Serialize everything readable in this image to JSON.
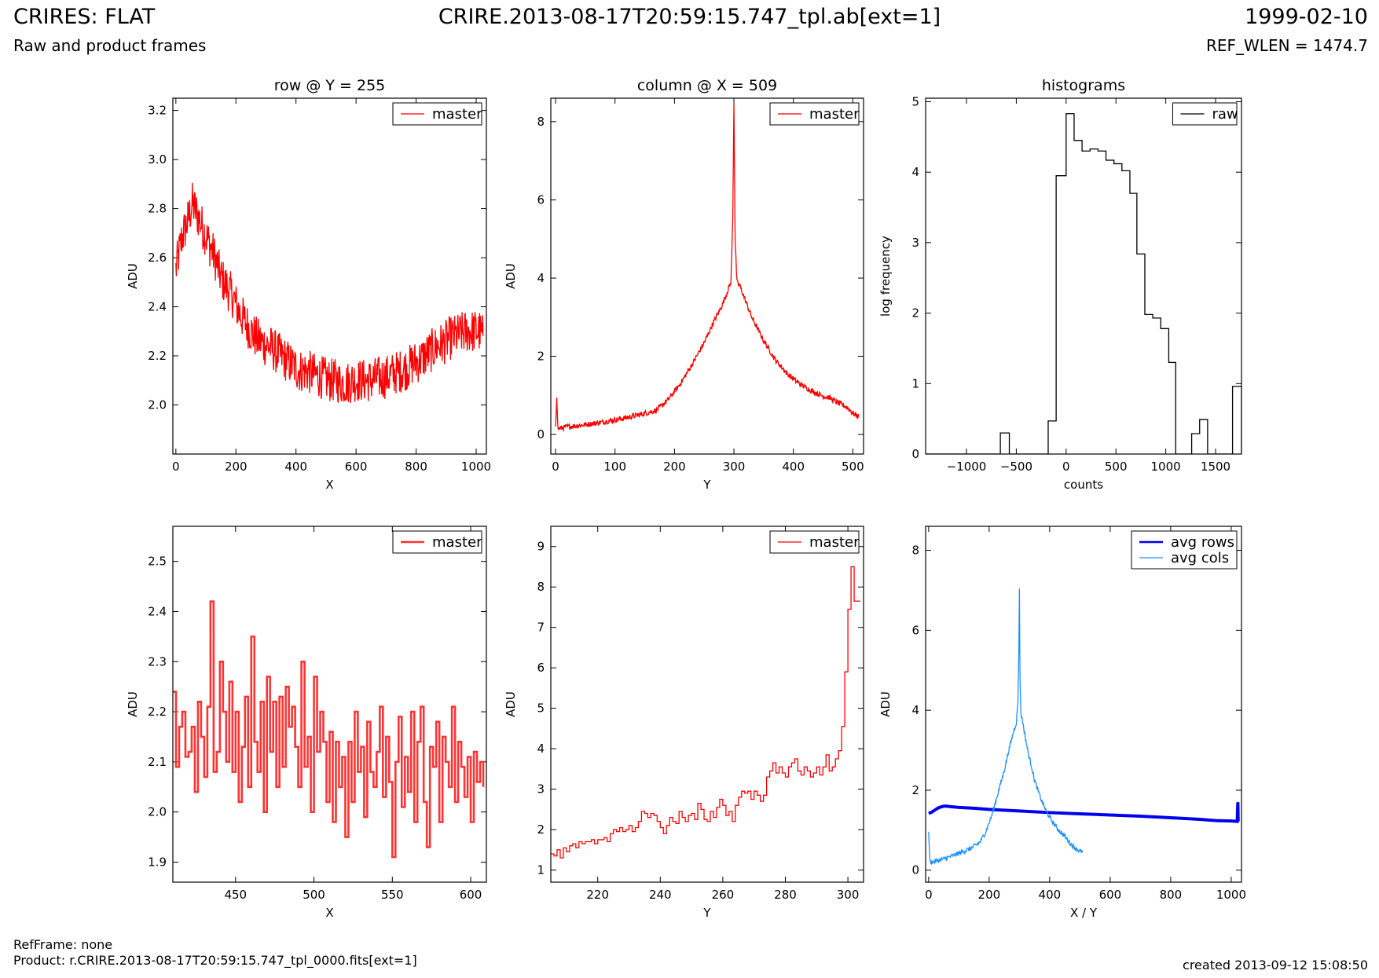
{
  "header": {
    "title": "CRIRES: FLAT",
    "subtitle": "Raw and product frames",
    "file": "CRIRE.2013-08-17T20:59:15.747_tpl.ab[ext=1]",
    "date": "1999-02-10",
    "ref_wlen": "REF_WLEN = 1474.7"
  },
  "footer": {
    "ref_frame": "RefFrame: none",
    "product": "Product: r.CRIRE.2013-08-17T20:59:15.747_tpl_0000.fits[ext=1]",
    "created": "created 2013-09-12 15:08:50"
  },
  "colors": {
    "master": "#ff0000",
    "master_zoom": "#ff3333",
    "raw": "#000000",
    "avg_rows": "#0000ee",
    "avg_cols": "#1e90ff"
  },
  "chart_data": [
    {
      "id": "row",
      "type": "line",
      "title": "row @ Y = 255",
      "xlabel": "X",
      "ylabel": "ADU",
      "xlim": [
        -10,
        1034
      ],
      "ylim": [
        1.8,
        3.25
      ],
      "xticks": [
        0,
        200,
        400,
        600,
        800,
        1000
      ],
      "yticks": [
        2.0,
        2.2,
        2.4,
        2.6,
        2.8,
        3.0,
        3.2
      ],
      "legend": "top-right",
      "series": [
        {
          "name": "master",
          "color": "#ff0000",
          "step": false,
          "x": [
            0,
            20,
            40,
            55,
            70,
            90,
            110,
            130,
            150,
            170,
            190,
            210,
            230,
            250,
            270,
            290,
            310,
            330,
            350,
            370,
            390,
            410,
            430,
            450,
            470,
            490,
            510,
            530,
            550,
            570,
            590,
            610,
            630,
            650,
            670,
            690,
            710,
            730,
            750,
            770,
            790,
            810,
            830,
            850,
            870,
            890,
            910,
            930,
            950,
            970,
            990,
            1010,
            1023
          ],
          "y": [
            2.55,
            2.68,
            2.75,
            2.82,
            2.78,
            2.72,
            2.66,
            2.6,
            2.52,
            2.48,
            2.44,
            2.38,
            2.34,
            2.3,
            2.27,
            2.25,
            2.24,
            2.22,
            2.2,
            2.18,
            2.16,
            2.14,
            2.14,
            2.13,
            2.12,
            2.11,
            2.1,
            2.1,
            2.09,
            2.09,
            2.1,
            2.1,
            2.1,
            2.1,
            2.11,
            2.11,
            2.12,
            2.13,
            2.14,
            2.15,
            2.17,
            2.18,
            2.2,
            2.22,
            2.24,
            2.25,
            2.27,
            2.28,
            2.29,
            2.3,
            2.3,
            2.3,
            2.28
          ],
          "noise": 0.09
        }
      ]
    },
    {
      "id": "column",
      "type": "line",
      "title": "column @ X = 509",
      "xlabel": "Y",
      "ylabel": "ADU",
      "xlim": [
        -8,
        518
      ],
      "ylim": [
        -0.5,
        8.6
      ],
      "xticks": [
        0,
        100,
        200,
        300,
        400,
        500
      ],
      "yticks": [
        0,
        2,
        4,
        6,
        8
      ],
      "legend": "top-right",
      "series": [
        {
          "name": "master",
          "color": "#ff0000",
          "step": false,
          "x": [
            0,
            2,
            4,
            6,
            20,
            50,
            80,
            110,
            140,
            170,
            190,
            210,
            230,
            250,
            265,
            280,
            290,
            295,
            298,
            300,
            302,
            305,
            310,
            320,
            330,
            340,
            350,
            370,
            390,
            410,
            430,
            450,
            460,
            470,
            490,
            500,
            510
          ],
          "y": [
            0.15,
            1.0,
            0.15,
            0.15,
            0.2,
            0.25,
            0.32,
            0.4,
            0.5,
            0.62,
            0.9,
            1.3,
            1.8,
            2.35,
            2.85,
            3.3,
            3.7,
            3.9,
            5.5,
            8.5,
            5.0,
            3.9,
            3.8,
            3.4,
            3.0,
            2.7,
            2.4,
            1.9,
            1.55,
            1.3,
            1.12,
            0.98,
            0.95,
            0.85,
            0.7,
            0.55,
            0.45
          ],
          "noise": 0.07
        }
      ]
    },
    {
      "id": "histogram",
      "type": "bar",
      "title": "histograms",
      "xlabel": "counts",
      "ylabel": "log frequency",
      "xlim": [
        -1410,
        1760
      ],
      "ylim": [
        0,
        5.05
      ],
      "xticks": [
        -1000,
        -500,
        0,
        500,
        1000,
        1500
      ],
      "yticks": [
        0,
        1,
        2,
        3,
        4,
        5
      ],
      "legend": "top-right",
      "series": [
        {
          "name": "raw",
          "color": "#000000",
          "step": true,
          "x": [
            -1410,
            -660,
            -660,
            -570,
            -570,
            -180,
            -180,
            -100,
            -100,
            0,
            0,
            80,
            80,
            160,
            160,
            240,
            240,
            320,
            320,
            400,
            400,
            480,
            480,
            560,
            560,
            640,
            640,
            710,
            710,
            790,
            790,
            870,
            870,
            950,
            950,
            1030,
            1030,
            1100,
            1100,
            1260,
            1260,
            1340,
            1340,
            1420,
            1420,
            1670,
            1670,
            1760,
            1760
          ],
          "y": [
            0,
            0,
            0.3,
            0.3,
            0,
            0,
            0.47,
            0.47,
            3.95,
            3.95,
            4.83,
            4.83,
            4.45,
            4.45,
            4.3,
            4.3,
            4.33,
            4.33,
            4.3,
            4.3,
            4.17,
            4.17,
            4.12,
            4.12,
            4.02,
            4.02,
            3.7,
            3.7,
            2.84,
            2.84,
            1.98,
            1.98,
            1.93,
            1.93,
            1.78,
            1.78,
            1.3,
            1.3,
            0,
            0,
            0.29,
            0.29,
            0.49,
            0.49,
            0,
            0,
            0.96,
            0.96,
            0
          ]
        }
      ]
    },
    {
      "id": "row-zoom",
      "type": "line",
      "title": "",
      "xlabel": "X",
      "ylabel": "ADU",
      "xlim": [
        410,
        610
      ],
      "ylim": [
        1.86,
        2.57
      ],
      "xticks": [
        450,
        500,
        550,
        600
      ],
      "yticks": [
        1.9,
        2.0,
        2.1,
        2.2,
        2.3,
        2.4,
        2.5
      ],
      "legend": "top-right",
      "series": [
        {
          "name": "master",
          "color": "#ff3333",
          "step": true,
          "lw": 2.6,
          "x": [
            410,
            412,
            414,
            416,
            418,
            420,
            422,
            424,
            426,
            428,
            430,
            432,
            434,
            436,
            438,
            440,
            442,
            444,
            446,
            448,
            450,
            452,
            454,
            456,
            458,
            460,
            462,
            464,
            466,
            468,
            470,
            472,
            474,
            476,
            478,
            480,
            482,
            484,
            486,
            488,
            490,
            492,
            494,
            496,
            498,
            500,
            502,
            504,
            506,
            508,
            510,
            512,
            514,
            516,
            518,
            520,
            522,
            524,
            526,
            528,
            530,
            532,
            534,
            536,
            538,
            540,
            542,
            544,
            546,
            548,
            550,
            552,
            554,
            556,
            558,
            560,
            562,
            564,
            566,
            568,
            570,
            572,
            574,
            576,
            578,
            580,
            582,
            584,
            586,
            588,
            590,
            592,
            594,
            596,
            598,
            600,
            602,
            604,
            606,
            608
          ],
          "y": [
            2.24,
            2.09,
            2.17,
            2.2,
            2.11,
            2.12,
            2.17,
            2.04,
            2.22,
            2.15,
            2.07,
            2.21,
            2.42,
            2.08,
            2.12,
            2.3,
            2.2,
            2.1,
            2.26,
            2.08,
            2.2,
            2.02,
            2.13,
            2.23,
            2.05,
            2.35,
            2.14,
            2.08,
            2.22,
            2.0,
            2.27,
            2.12,
            2.22,
            2.05,
            2.23,
            2.09,
            2.25,
            2.17,
            2.21,
            2.13,
            2.05,
            2.3,
            2.09,
            2.15,
            2.0,
            2.27,
            2.12,
            2.2,
            2.14,
            2.02,
            2.16,
            1.98,
            2.14,
            2.05,
            2.11,
            1.95,
            2.14,
            2.02,
            2.2,
            2.08,
            2.13,
            1.99,
            2.18,
            2.08,
            2.05,
            2.12,
            2.21,
            2.03,
            2.15,
            2.06,
            1.91,
            2.1,
            2.19,
            2.01,
            2.11,
            2.04,
            2.2,
            1.98,
            2.14,
            2.21,
            2.02,
            1.93,
            2.13,
            2.09,
            2.18,
            1.98,
            2.15,
            2.1,
            2.05,
            2.21,
            2.02,
            2.14,
            2.09,
            2.03,
            2.11,
            1.98,
            2.12,
            2.06,
            2.1,
            2.05
          ]
        }
      ]
    },
    {
      "id": "column-zoom",
      "type": "line",
      "title": "",
      "xlabel": "Y",
      "ylabel": "ADU",
      "xlim": [
        205,
        305
      ],
      "ylim": [
        0.7,
        9.5
      ],
      "xticks": [
        220,
        240,
        260,
        280,
        300
      ],
      "yticks": [
        1,
        2,
        3,
        4,
        5,
        6,
        7,
        8,
        9
      ],
      "legend": "top-right",
      "series": [
        {
          "name": "master",
          "color": "#ff0000",
          "step": true,
          "x": [
            205,
            206,
            207,
            208,
            209,
            210,
            211,
            212,
            213,
            214,
            215,
            216,
            217,
            218,
            219,
            220,
            221,
            222,
            223,
            224,
            225,
            226,
            227,
            228,
            229,
            230,
            231,
            232,
            233,
            234,
            235,
            236,
            237,
            238,
            239,
            240,
            241,
            242,
            243,
            244,
            245,
            246,
            247,
            248,
            249,
            250,
            251,
            252,
            253,
            254,
            255,
            256,
            257,
            258,
            259,
            260,
            261,
            262,
            263,
            264,
            265,
            266,
            267,
            268,
            269,
            270,
            271,
            272,
            273,
            274,
            275,
            276,
            277,
            278,
            279,
            280,
            281,
            282,
            283,
            284,
            285,
            286,
            287,
            288,
            289,
            290,
            291,
            292,
            293,
            294,
            295,
            296,
            297,
            298,
            299,
            300,
            301,
            302,
            303,
            304
          ],
          "y": [
            1.4,
            1.35,
            1.5,
            1.3,
            1.55,
            1.45,
            1.6,
            1.65,
            1.55,
            1.7,
            1.65,
            1.7,
            1.7,
            1.75,
            1.65,
            1.75,
            1.75,
            1.8,
            1.7,
            1.9,
            2.0,
            1.95,
            2.05,
            1.95,
            2.0,
            2.1,
            1.95,
            2.05,
            2.2,
            2.45,
            2.4,
            2.3,
            2.4,
            2.35,
            2.2,
            2.05,
            1.9,
            2.1,
            2.3,
            2.2,
            2.15,
            2.45,
            2.3,
            2.2,
            2.35,
            2.4,
            2.25,
            2.65,
            2.5,
            2.25,
            2.2,
            2.45,
            2.3,
            2.55,
            2.75,
            2.6,
            2.35,
            2.45,
            2.2,
            2.6,
            2.8,
            2.95,
            2.9,
            2.95,
            2.75,
            2.95,
            2.85,
            2.7,
            2.85,
            3.3,
            3.45,
            3.65,
            3.4,
            3.55,
            3.4,
            3.3,
            3.55,
            3.65,
            3.75,
            3.45,
            3.35,
            3.55,
            3.45,
            3.3,
            3.4,
            3.55,
            3.35,
            3.55,
            3.85,
            3.45,
            3.55,
            3.75,
            3.95,
            4.55,
            5.9,
            7.45,
            8.5,
            7.65,
            7.65,
            7.65
          ]
        }
      ]
    },
    {
      "id": "averages",
      "type": "line",
      "title": "",
      "xlabel": "X / Y",
      "ylabel": "ADU",
      "xlim": [
        -10,
        1034
      ],
      "ylim": [
        -0.3,
        8.6
      ],
      "xticks": [
        0,
        200,
        400,
        600,
        800,
        1000
      ],
      "yticks": [
        0,
        2,
        4,
        6,
        8
      ],
      "legend": "top-right",
      "series": [
        {
          "name": "avg rows",
          "color": "#0000ee",
          "step": false,
          "lw": 4,
          "x": [
            0,
            10,
            20,
            30,
            40,
            50,
            60,
            70,
            100,
            150,
            200,
            300,
            400,
            500,
            600,
            700,
            800,
            900,
            950,
            1000,
            1020,
            1021,
            1022,
            1023
          ],
          "y": [
            1.42,
            1.45,
            1.5,
            1.55,
            1.58,
            1.6,
            1.6,
            1.59,
            1.57,
            1.55,
            1.52,
            1.48,
            1.44,
            1.41,
            1.38,
            1.35,
            1.31,
            1.27,
            1.24,
            1.23,
            1.22,
            1.5,
            1.7,
            1.22
          ]
        },
        {
          "name": "avg cols",
          "color": "#1e90ff",
          "step": false,
          "x": [
            0,
            2,
            4,
            6,
            20,
            50,
            80,
            110,
            140,
            170,
            190,
            210,
            230,
            250,
            265,
            280,
            290,
            295,
            298,
            300,
            302,
            305,
            310,
            320,
            330,
            340,
            350,
            370,
            390,
            410,
            430,
            450,
            460,
            470,
            490,
            500,
            510
          ],
          "y": [
            1.0,
            0.6,
            0.25,
            0.2,
            0.22,
            0.28,
            0.36,
            0.45,
            0.55,
            0.7,
            0.98,
            1.4,
            1.95,
            2.5,
            3.0,
            3.45,
            3.7,
            4.2,
            5.5,
            7.0,
            4.8,
            3.9,
            3.75,
            3.3,
            2.9,
            2.6,
            2.25,
            1.8,
            1.45,
            1.2,
            1.0,
            0.85,
            0.75,
            0.65,
            0.52,
            0.48,
            0.45
          ],
          "noise": 0.06
        }
      ]
    }
  ]
}
